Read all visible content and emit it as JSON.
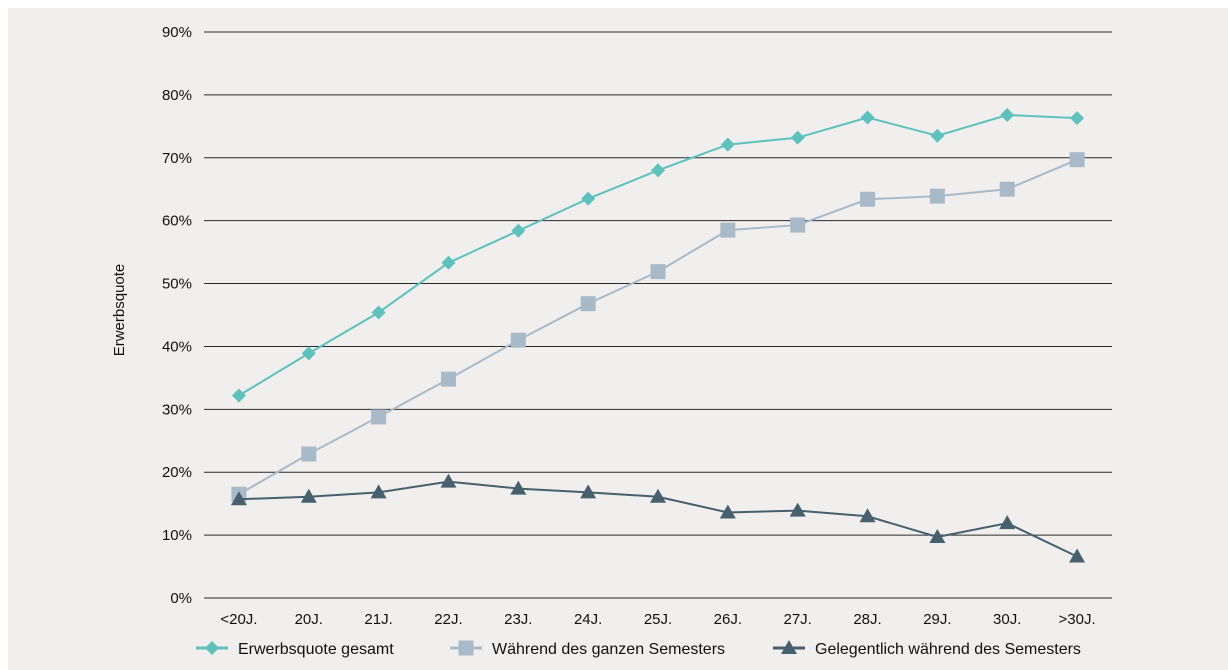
{
  "chart_data": {
    "type": "line",
    "title": "",
    "xlabel": "",
    "ylabel": "Erwerbsquote",
    "ylim": [
      0,
      90
    ],
    "yticks": [
      "0%",
      "10%",
      "20%",
      "30%",
      "40%",
      "50%",
      "60%",
      "70%",
      "80%",
      "90%"
    ],
    "grid": "horizontal",
    "legend_position": "bottom",
    "categories": [
      "<20J.",
      "20J.",
      "21J.",
      "22J.",
      "23J.",
      "24J.",
      "25J.",
      "26J.",
      "27J.",
      "28J.",
      "29J.",
      "30J.",
      ">30J."
    ],
    "series": [
      {
        "name": "Erwerbsquote gesamt",
        "color": "#5fc1bb",
        "marker": "diamond",
        "values": [
          32.2,
          38.9,
          45.4,
          53.3,
          58.4,
          63.5,
          68.0,
          72.1,
          73.2,
          76.4,
          73.5,
          76.8,
          76.3
        ]
      },
      {
        "name": "Während des ganzen Semesters",
        "color": "#a8bac8",
        "marker": "square",
        "values": [
          16.5,
          22.9,
          28.8,
          34.8,
          41.0,
          46.8,
          51.9,
          58.5,
          59.3,
          63.4,
          63.9,
          65.0,
          69.7
        ]
      },
      {
        "name": "Gelegentlich während des Semesters",
        "color": "#46606e",
        "marker": "triangle",
        "values": [
          15.7,
          16.1,
          16.8,
          18.5,
          17.4,
          16.8,
          16.1,
          13.6,
          13.9,
          13.0,
          9.7,
          11.9,
          6.6
        ]
      }
    ]
  }
}
